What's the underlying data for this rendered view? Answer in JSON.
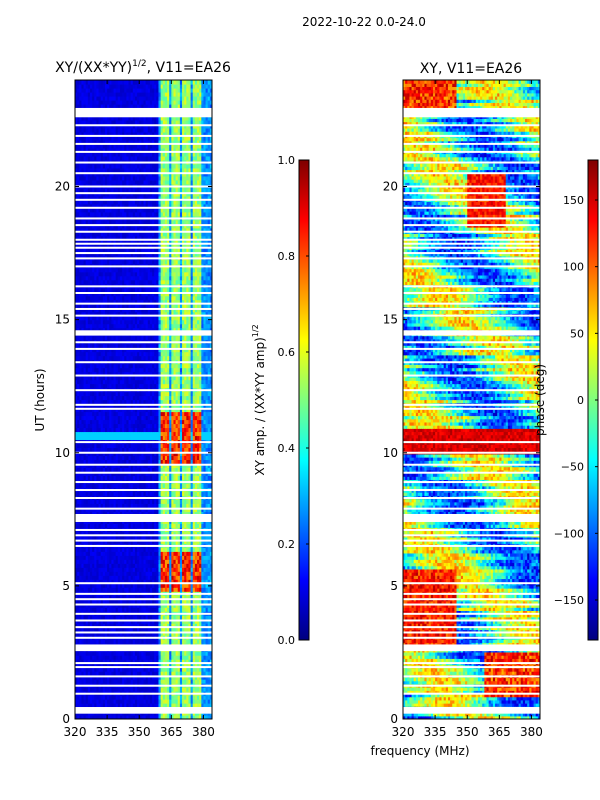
{
  "figure_title": "2022-10-22 0.0-24.0",
  "colors": {
    "jet": [
      "#00007f",
      "#0000ff",
      "#007fff",
      "#00ffff",
      "#7fff7f",
      "#ffff00",
      "#ff7f00",
      "#ff0000",
      "#7f0000"
    ],
    "frame": "#000000",
    "background": "#ffffff"
  },
  "chart_data": [
    {
      "type": "heatmap",
      "title": "XY/(XX*YY)^1/2, V11=EA26",
      "title_main": "XY/(XX*YY)",
      "title_exp": "1/2",
      "title_suffix": ", V11=EA26",
      "xlabel": "",
      "ylabel": "UT (hours)",
      "xlim": [
        320,
        384
      ],
      "ylim": [
        0,
        24
      ],
      "xticks": [
        320,
        335,
        350,
        365,
        380
      ],
      "yticks": [
        0,
        5,
        10,
        15,
        20
      ],
      "colorbar": {
        "label": "XY amp. / (XX*YY amp)^1/2",
        "label_main": "XY amp. / (XX*YY amp)",
        "label_exp": "1/2",
        "range": [
          0.0,
          1.0
        ],
        "ticks": [
          "0.0",
          "0.2",
          "0.4",
          "0.6",
          "0.8",
          "1.0"
        ]
      },
      "bright_channels_mhz": [
        362,
        367,
        372,
        377
      ],
      "high_amplitude_time_ranges_h": [
        [
          9.6,
          11.6
        ],
        [
          4.8,
          6.3
        ]
      ],
      "flagged_time_ranges_h": [
        [
          0.2,
          0.45
        ],
        [
          2.55,
          2.8
        ],
        [
          7.4,
          7.7
        ],
        [
          14.4,
          14.6
        ],
        [
          22.6,
          22.95
        ]
      ],
      "flagged_times_h": [
        0.95,
        1.25,
        1.6,
        1.95,
        2.1,
        3.05,
        3.25,
        3.45,
        3.7,
        3.95,
        4.3,
        4.5,
        4.7,
        5.1,
        6.5,
        6.7,
        6.9,
        7.1,
        7.9,
        8.3,
        8.6,
        8.9,
        9.25,
        9.55,
        10.0,
        10.4,
        11.65,
        11.8,
        12.35,
        12.9,
        13.4,
        13.9,
        14.15,
        15.15,
        15.4,
        15.6,
        16.0,
        16.25,
        17.0,
        17.3,
        17.5,
        17.7,
        17.85,
        18.0,
        18.3,
        18.55,
        18.8,
        19.2,
        19.5,
        19.75,
        20.0,
        20.5,
        20.9,
        21.3,
        21.6,
        21.9,
        22.3
      ]
    },
    {
      "type": "heatmap",
      "title": "XY, V11=EA26",
      "xlabel": "frequency (MHz)",
      "ylabel": "",
      "xlim": [
        320,
        384
      ],
      "ylim": [
        0,
        24
      ],
      "xticks": [
        320,
        335,
        350,
        365,
        380
      ],
      "yticks": [
        0,
        5,
        10,
        15,
        20
      ],
      "colorbar": {
        "label": "phase (deg)",
        "range": [
          -180,
          180
        ],
        "ticks": [
          "−150",
          "−100",
          "−50",
          "0",
          "50",
          "100",
          "150"
        ]
      },
      "strong_phase_bands_h": [
        [
          9.9,
          10.9
        ],
        [
          2.8,
          5.6
        ],
        [
          22.9,
          24.0
        ]
      ],
      "flagged_time_ranges_h": [
        [
          0.2,
          0.45
        ],
        [
          2.55,
          2.8
        ],
        [
          7.4,
          7.7
        ],
        [
          14.4,
          14.6
        ],
        [
          22.6,
          22.95
        ]
      ]
    }
  ]
}
